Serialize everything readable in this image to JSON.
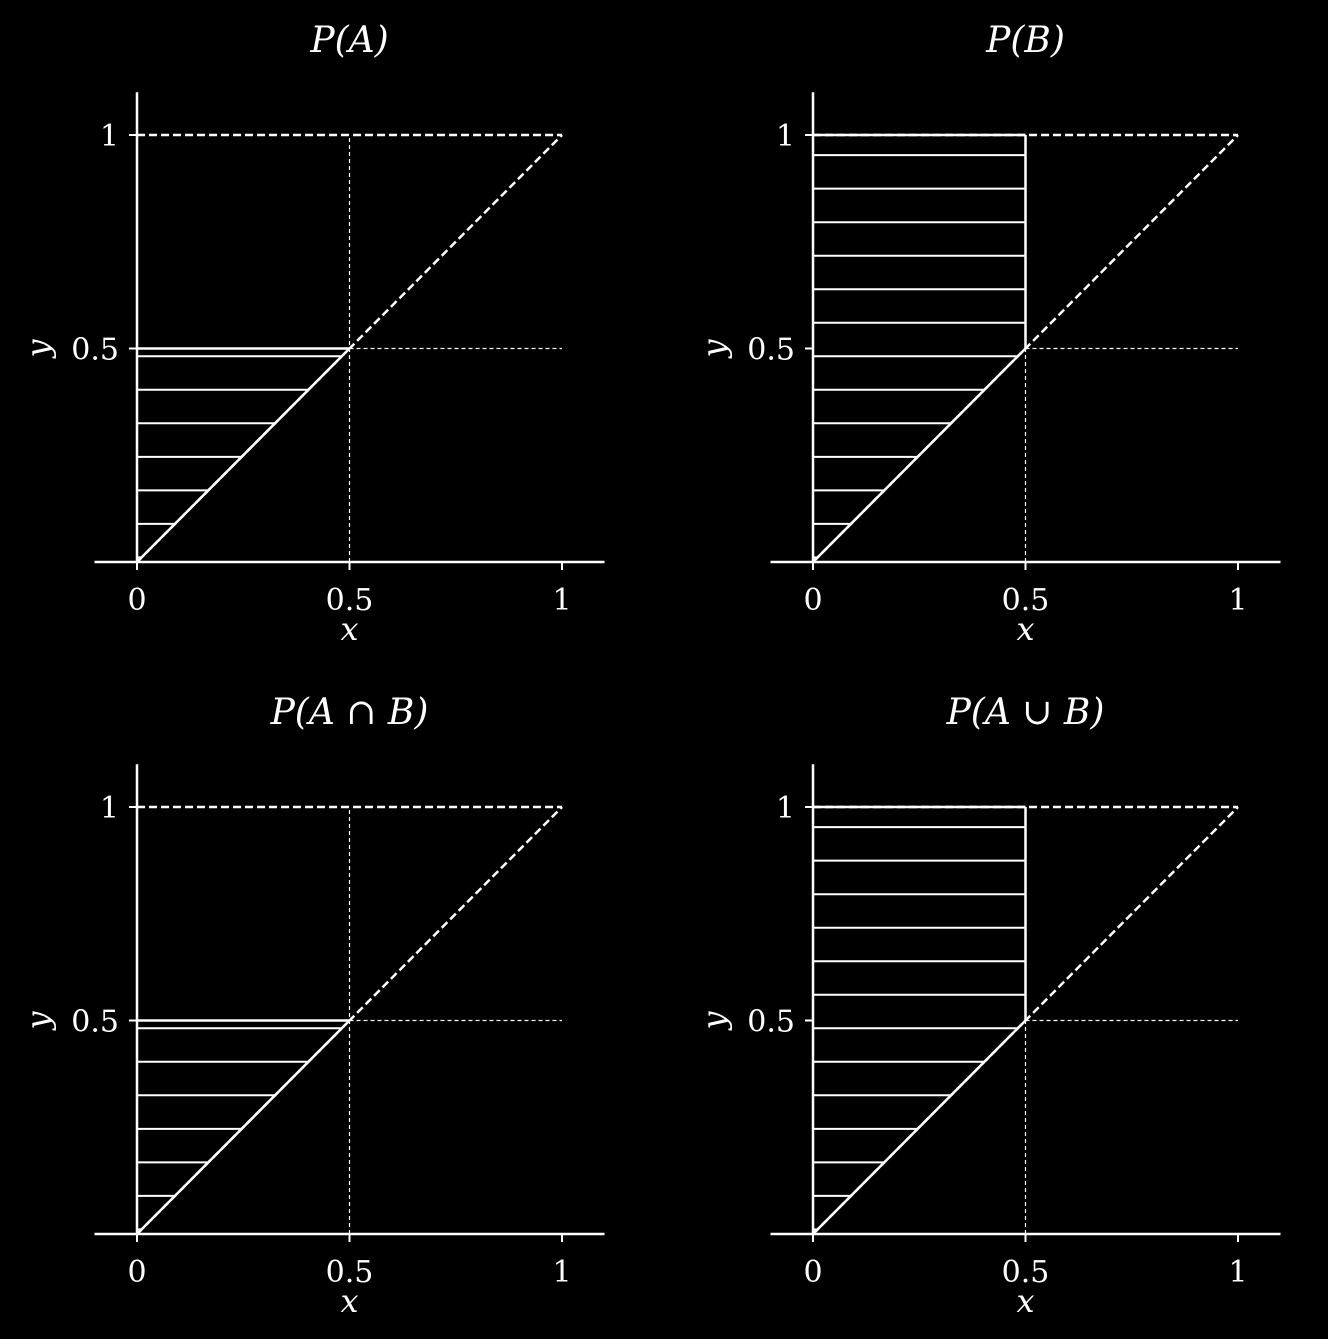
{
  "figure": {
    "background": "#000000",
    "foreground": "#ffffff"
  },
  "chart_data": [
    {
      "type": "region-shading",
      "title": "P(A)",
      "xlabel": "x",
      "ylabel": "y",
      "xlim": [
        -0.1,
        1.1
      ],
      "ylim": [
        0,
        1.1
      ],
      "xticks": [
        0,
        0.5,
        1
      ],
      "xtick_labels": [
        "0",
        "0.5",
        "1"
      ],
      "yticks": [
        0.5,
        1
      ],
      "ytick_labels": [
        "0.5",
        "1"
      ],
      "guide_levels": {
        "x": 0.5,
        "y": 0.5
      },
      "region": {
        "y_min": 0,
        "y_max": 0.5,
        "x_from": 0,
        "x_to": "y",
        "hatch_step": 0.0785,
        "hatch_start": 0.0108
      }
    },
    {
      "type": "region-shading",
      "title": "P(B)",
      "xlabel": "x",
      "ylabel": "y",
      "xlim": [
        -0.1,
        1.1
      ],
      "ylim": [
        0,
        1.1
      ],
      "xticks": [
        0,
        0.5,
        1
      ],
      "xtick_labels": [
        "0",
        "0.5",
        "1"
      ],
      "yticks": [
        0.5,
        1
      ],
      "ytick_labels": [
        "0.5",
        "1"
      ],
      "guide_levels": {
        "x": 0.5,
        "y": 0.5
      },
      "region": {
        "y_min": 0,
        "y_max": 1,
        "x_from": 0,
        "x_to": "min(y, 0.5)",
        "hatch_step": 0.0785,
        "hatch_start": 0.0108
      }
    },
    {
      "type": "region-shading",
      "title": "P(A ∩ B)",
      "xlabel": "x",
      "ylabel": "y",
      "xlim": [
        -0.1,
        1.1
      ],
      "ylim": [
        0,
        1.1
      ],
      "xticks": [
        0,
        0.5,
        1
      ],
      "xtick_labels": [
        "0",
        "0.5",
        "1"
      ],
      "yticks": [
        0.5,
        1
      ],
      "ytick_labels": [
        "0.5",
        "1"
      ],
      "guide_levels": {
        "x": 0.5,
        "y": 0.5
      },
      "region": {
        "y_min": 0,
        "y_max": 0.5,
        "x_from": 0,
        "x_to": "y",
        "hatch_step": 0.0785,
        "hatch_start": 0.0108
      }
    },
    {
      "type": "region-shading",
      "title": "P(A ∪ B)",
      "xlabel": "x",
      "ylabel": "y",
      "xlim": [
        -0.1,
        1.1
      ],
      "ylim": [
        0,
        1.1
      ],
      "xticks": [
        0,
        0.5,
        1
      ],
      "xtick_labels": [
        "0",
        "0.5",
        "1"
      ],
      "yticks": [
        0.5,
        1
      ],
      "ytick_labels": [
        "0.5",
        "1"
      ],
      "guide_levels": {
        "x": 0.5,
        "y": 0.5
      },
      "region": {
        "y_min": 0,
        "y_max": 1,
        "x_from": 0,
        "x_to": "min(y, 0.5)",
        "hatch_step": 0.0785,
        "hatch_start": 0.0108
      }
    }
  ]
}
